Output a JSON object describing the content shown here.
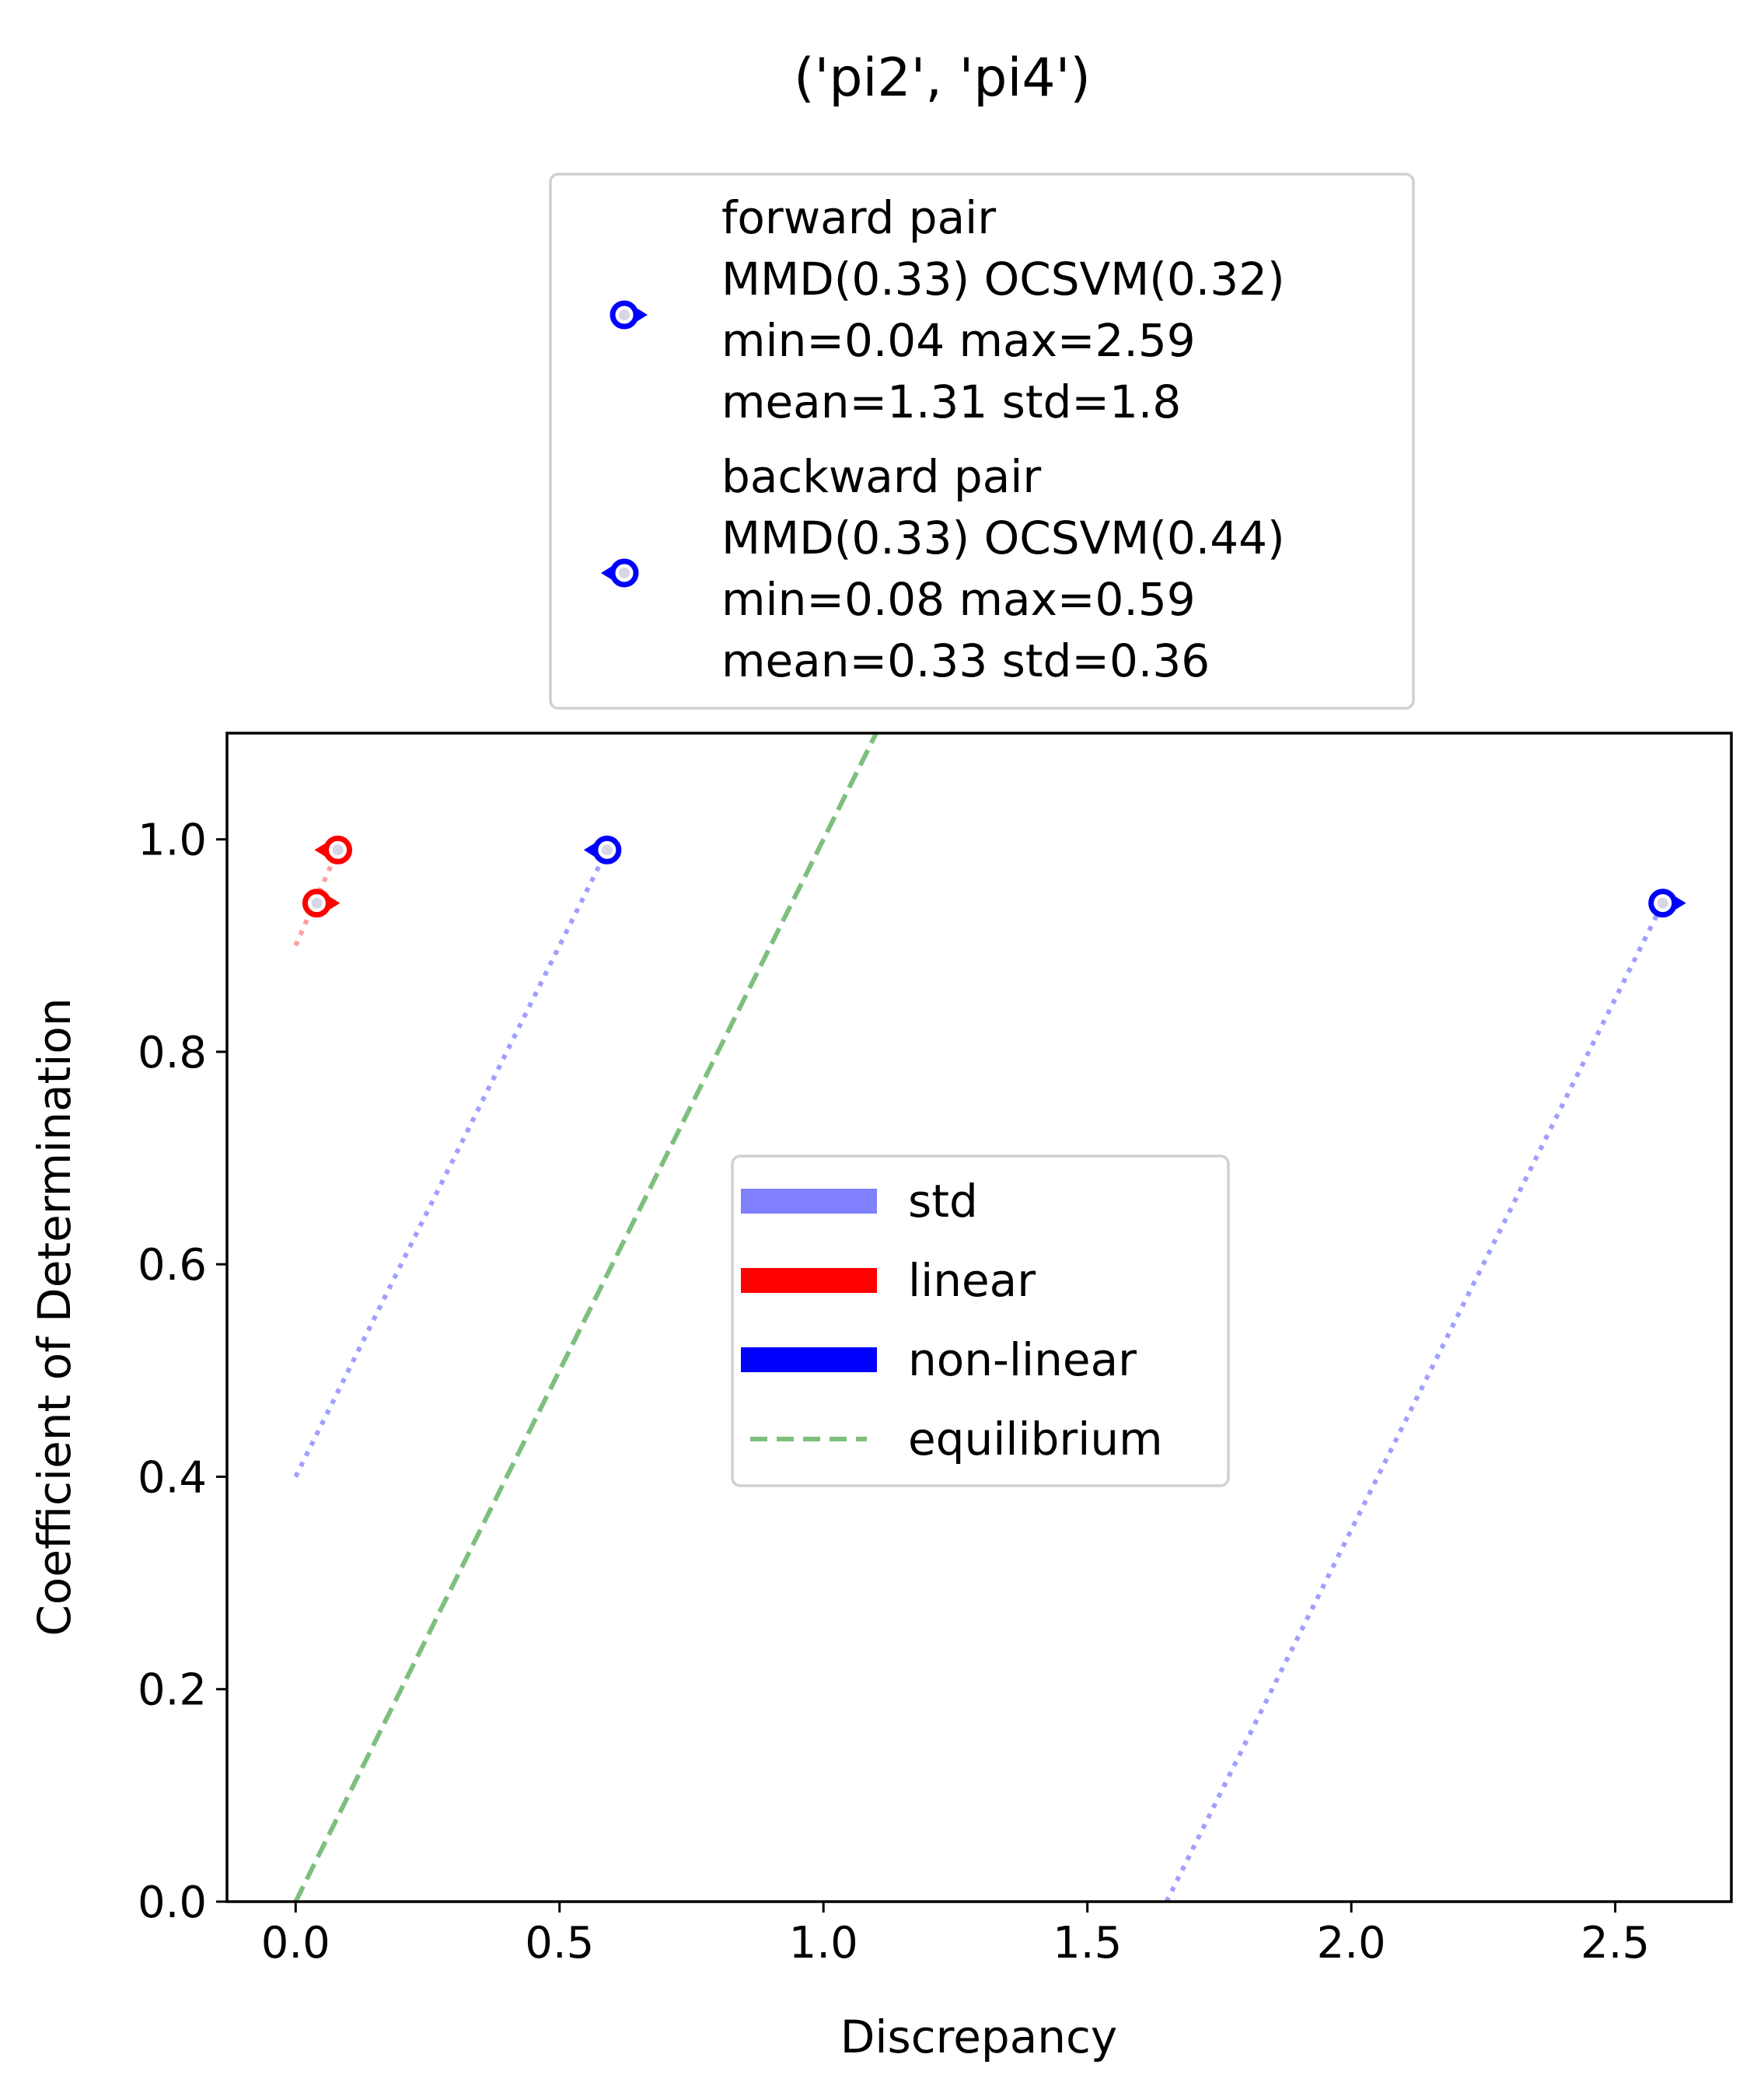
{
  "chart_data": {
    "type": "scatter",
    "title": "('pi2', 'pi4')",
    "xlabel": "Discrepancy",
    "ylabel": "Coefficient of Determination",
    "xlim": [
      -0.13,
      2.72
    ],
    "ylim": [
      0.0,
      1.1
    ],
    "xticks": [
      0.0,
      0.5,
      1.0,
      1.5,
      2.0,
      2.5
    ],
    "yticks": [
      0.0,
      0.2,
      0.4,
      0.6,
      0.8,
      1.0
    ],
    "xtick_labels": [
      "0.0",
      "0.5",
      "1.0",
      "1.5",
      "2.0",
      "2.5"
    ],
    "ytick_labels": [
      "0.0",
      "0.2",
      "0.4",
      "0.6",
      "0.8",
      "1.0"
    ],
    "grid": false,
    "points": [
      {
        "group": "linear",
        "direction": "forward",
        "x": 0.04,
        "y": 0.94,
        "color": "#ff0000"
      },
      {
        "group": "linear",
        "direction": "backward",
        "x": 0.08,
        "y": 0.99,
        "color": "#ff0000"
      },
      {
        "group": "non-linear",
        "direction": "backward",
        "x": 0.59,
        "y": 0.99,
        "color": "#0000ff"
      },
      {
        "group": "non-linear",
        "direction": "forward",
        "x": 2.59,
        "y": 0.94,
        "color": "#0000ff"
      }
    ],
    "std_lines": [
      {
        "group": "linear",
        "x": [
          0.0,
          0.08
        ],
        "y": [
          0.9,
          0.99
        ],
        "color": "#ff8080"
      },
      {
        "group": "non-linear",
        "x": [
          0.0,
          0.59
        ],
        "y": [
          0.4,
          0.99
        ],
        "color": "#8080ff"
      },
      {
        "group": "non-linear",
        "x": [
          1.65,
          2.59
        ],
        "y": [
          0.0,
          0.94
        ],
        "color": "#8080ff"
      }
    ],
    "equilibrium_line": {
      "x": [
        0.0,
        1.1
      ],
      "y": [
        0.0,
        1.1
      ],
      "color": "#008000"
    },
    "legend_top": {
      "placement": "above-plot",
      "entries": [
        {
          "marker": "forward",
          "lines": [
            "forward pair",
            "MMD(0.33) OCSVM(0.32)",
            "min=0.04 max=2.59",
            "mean=1.31 std=1.8"
          ]
        },
        {
          "marker": "backward",
          "lines": [
            "backward pair",
            "MMD(0.33) OCSVM(0.44)",
            "min=0.08 max=0.59",
            "mean=0.33 std=0.36"
          ]
        }
      ]
    },
    "legend_center": {
      "placement": "center",
      "entries": [
        {
          "label": "std",
          "style": "patch",
          "color": "#8080ff"
        },
        {
          "label": "linear",
          "style": "patch",
          "color": "#ff0000"
        },
        {
          "label": "non-linear",
          "style": "patch",
          "color": "#0000ff"
        },
        {
          "label": "equilibrium",
          "style": "dashed",
          "color": "#008000"
        }
      ]
    }
  }
}
